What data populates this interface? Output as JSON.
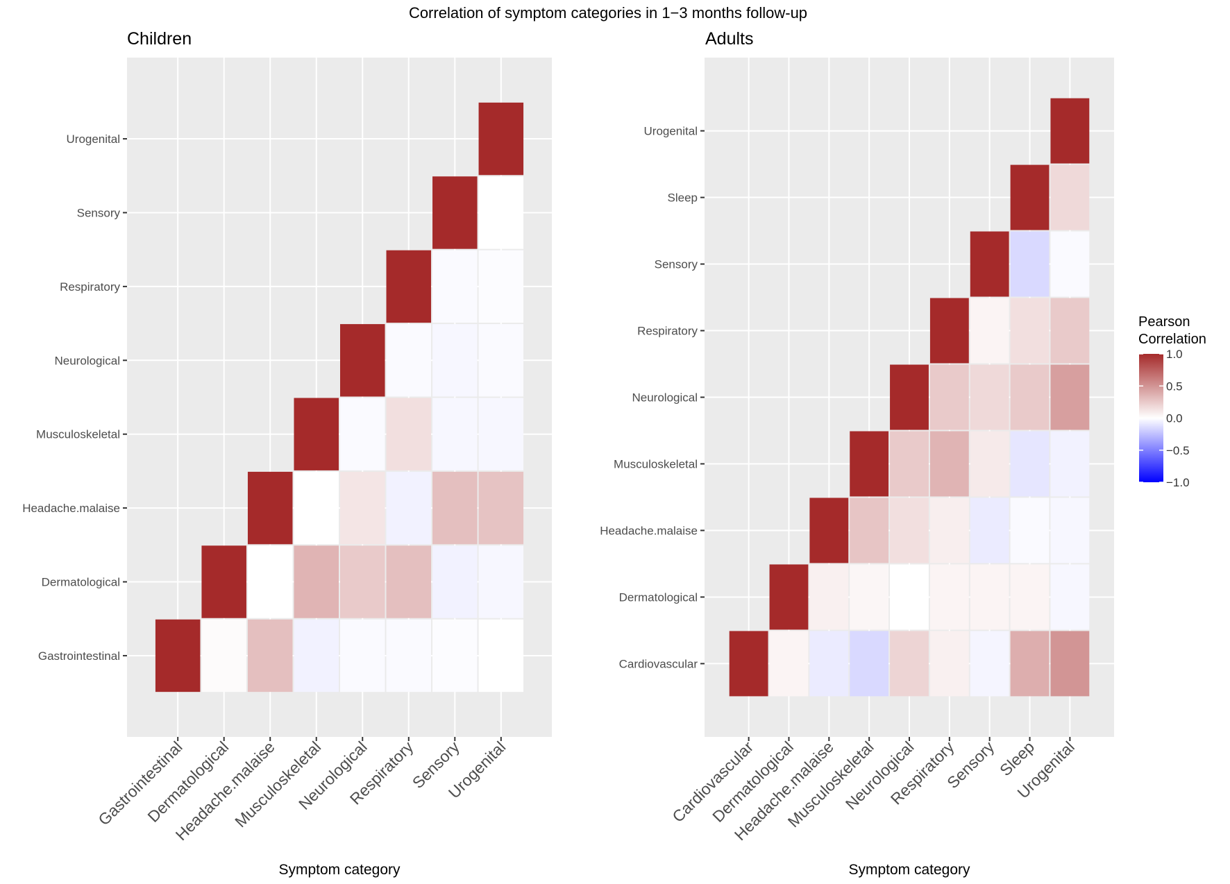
{
  "chart_data": {
    "title": "Correlation of symptom categories in 1−3 months follow-up",
    "type": "heatmap",
    "legend": {
      "title_lines": [
        "Pearson",
        "Correlation"
      ],
      "ticks": [
        "1.0",
        "0.5",
        "0.0",
        "−0.5",
        "−1.0"
      ],
      "tick_values": [
        1,
        0.5,
        0,
        -0.5,
        -1
      ],
      "placement": "right",
      "low_color": "#0000FF",
      "mid_color": "#FFFFFF",
      "high_color": "#A52A2A",
      "panel_bg": "#EBEBEB"
    },
    "panels": [
      {
        "title": "Children",
        "xlabel": "Symptom category",
        "categories": [
          "Gastrointestinal",
          "Dermatological",
          "Headache.malaise",
          "Musculoskeletal",
          "Neurological",
          "Respiratory",
          "Sensory",
          "Urogenital"
        ],
        "matrix": [
          [
            1,
            0.02,
            0.3,
            -0.05,
            -0.02,
            -0.02,
            -0.01,
            0.0
          ],
          [
            null,
            1,
            0.0,
            0.35,
            0.25,
            0.3,
            -0.05,
            -0.03
          ],
          [
            null,
            null,
            1,
            0.0,
            0.12,
            -0.05,
            0.3,
            0.28
          ],
          [
            null,
            null,
            null,
            1,
            -0.02,
            0.15,
            -0.03,
            -0.03
          ],
          [
            null,
            null,
            null,
            null,
            1,
            -0.02,
            -0.03,
            -0.02
          ],
          [
            null,
            null,
            null,
            null,
            null,
            1,
            -0.02,
            -0.01
          ],
          [
            null,
            null,
            null,
            null,
            null,
            null,
            1,
            0.0
          ],
          [
            null,
            null,
            null,
            null,
            null,
            null,
            null,
            1
          ]
        ]
      },
      {
        "title": "Adults",
        "xlabel": "Symptom category",
        "categories": [
          "Cardiovascular",
          "Dermatological",
          "Headache.malaise",
          "Musculoskeletal",
          "Neurological",
          "Respiratory",
          "Sensory",
          "Sleep",
          "Urogenital"
        ],
        "matrix": [
          [
            1,
            0.05,
            -0.08,
            -0.15,
            0.2,
            0.07,
            -0.04,
            0.38,
            0.5
          ],
          [
            null,
            1,
            0.07,
            0.04,
            0.0,
            0.05,
            0.05,
            0.05,
            -0.03
          ],
          [
            null,
            null,
            1,
            0.27,
            0.15,
            0.08,
            -0.08,
            -0.02,
            -0.03
          ],
          [
            null,
            null,
            null,
            1,
            0.25,
            0.35,
            0.1,
            -0.1,
            -0.05
          ],
          [
            null,
            null,
            null,
            null,
            1,
            0.25,
            0.18,
            0.25,
            0.45
          ],
          [
            null,
            null,
            null,
            null,
            null,
            1,
            0.05,
            0.15,
            0.25
          ],
          [
            null,
            null,
            null,
            null,
            null,
            null,
            1,
            -0.15,
            -0.02
          ],
          [
            null,
            null,
            null,
            null,
            null,
            null,
            null,
            1,
            0.18
          ],
          [
            null,
            null,
            null,
            null,
            null,
            null,
            null,
            null,
            1
          ]
        ]
      }
    ]
  }
}
